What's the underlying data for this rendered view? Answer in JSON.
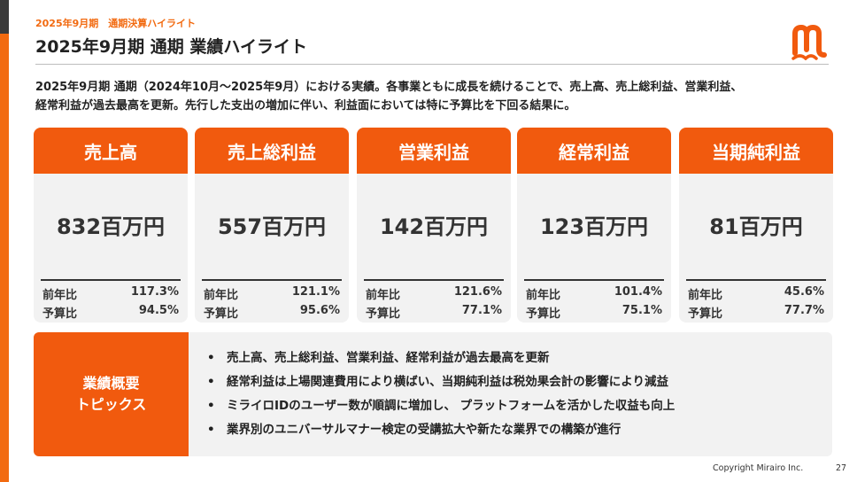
{
  "header": {
    "eyebrow": "2025年9月期　通期決算ハイライト",
    "title": "2025年9月期 通期 業績ハイライト"
  },
  "intro": {
    "line1": "2025年9月期 通期（2024年10月～2025年9月）における実績。各事業ともに成長を続けることで、売上高、売上総利益、営業利益、",
    "line2": "経常利益が過去最高を更新。先行した支出の増加に伴い、利益面においては特に予算比を下回る結果に。"
  },
  "metrics": [
    {
      "title": "売上高",
      "value": "832百万円",
      "yoy_label": "前年比",
      "yoy": "117.3%",
      "budget_label": "予算比",
      "budget": "94.5%"
    },
    {
      "title": "売上総利益",
      "value": "557百万円",
      "yoy_label": "前年比",
      "yoy": "121.1%",
      "budget_label": "予算比",
      "budget": "95.6%"
    },
    {
      "title": "営業利益",
      "value": "142百万円",
      "yoy_label": "前年比",
      "yoy": "121.6%",
      "budget_label": "予算比",
      "budget": "77.1%"
    },
    {
      "title": "経常利益",
      "value": "123百万円",
      "yoy_label": "前年比",
      "yoy": "101.4%",
      "budget_label": "予算比",
      "budget": "75.1%"
    },
    {
      "title": "当期純利益",
      "value": "81百万円",
      "yoy_label": "前年比",
      "yoy": "45.6%",
      "budget_label": "予算比",
      "budget": "77.7%"
    }
  ],
  "topics": {
    "label_line1": "業績概要",
    "label_line2": "トピックス",
    "bullet": "•",
    "items": [
      "売上高、売上総利益、営業利益、経常利益が過去最高を更新",
      "経常利益は上場関連費用により横ばい、当期純利益は税効果会計の影響により減益",
      "ミライロIDのユーザー数が順調に増加し、 プラットフォームを活かした収益も向上",
      "業界別のユニバーサルマナー検定の受講拡大や新たな業界での構築が進行"
    ]
  },
  "footer": {
    "copyright": "Copyright Mirairo Inc.",
    "page": "27"
  },
  "colors": {
    "accent": "#f15a0e",
    "card_bg": "#f2f2f2",
    "text": "#222222"
  },
  "icons": {
    "logo": "mirairo-logo-icon"
  }
}
